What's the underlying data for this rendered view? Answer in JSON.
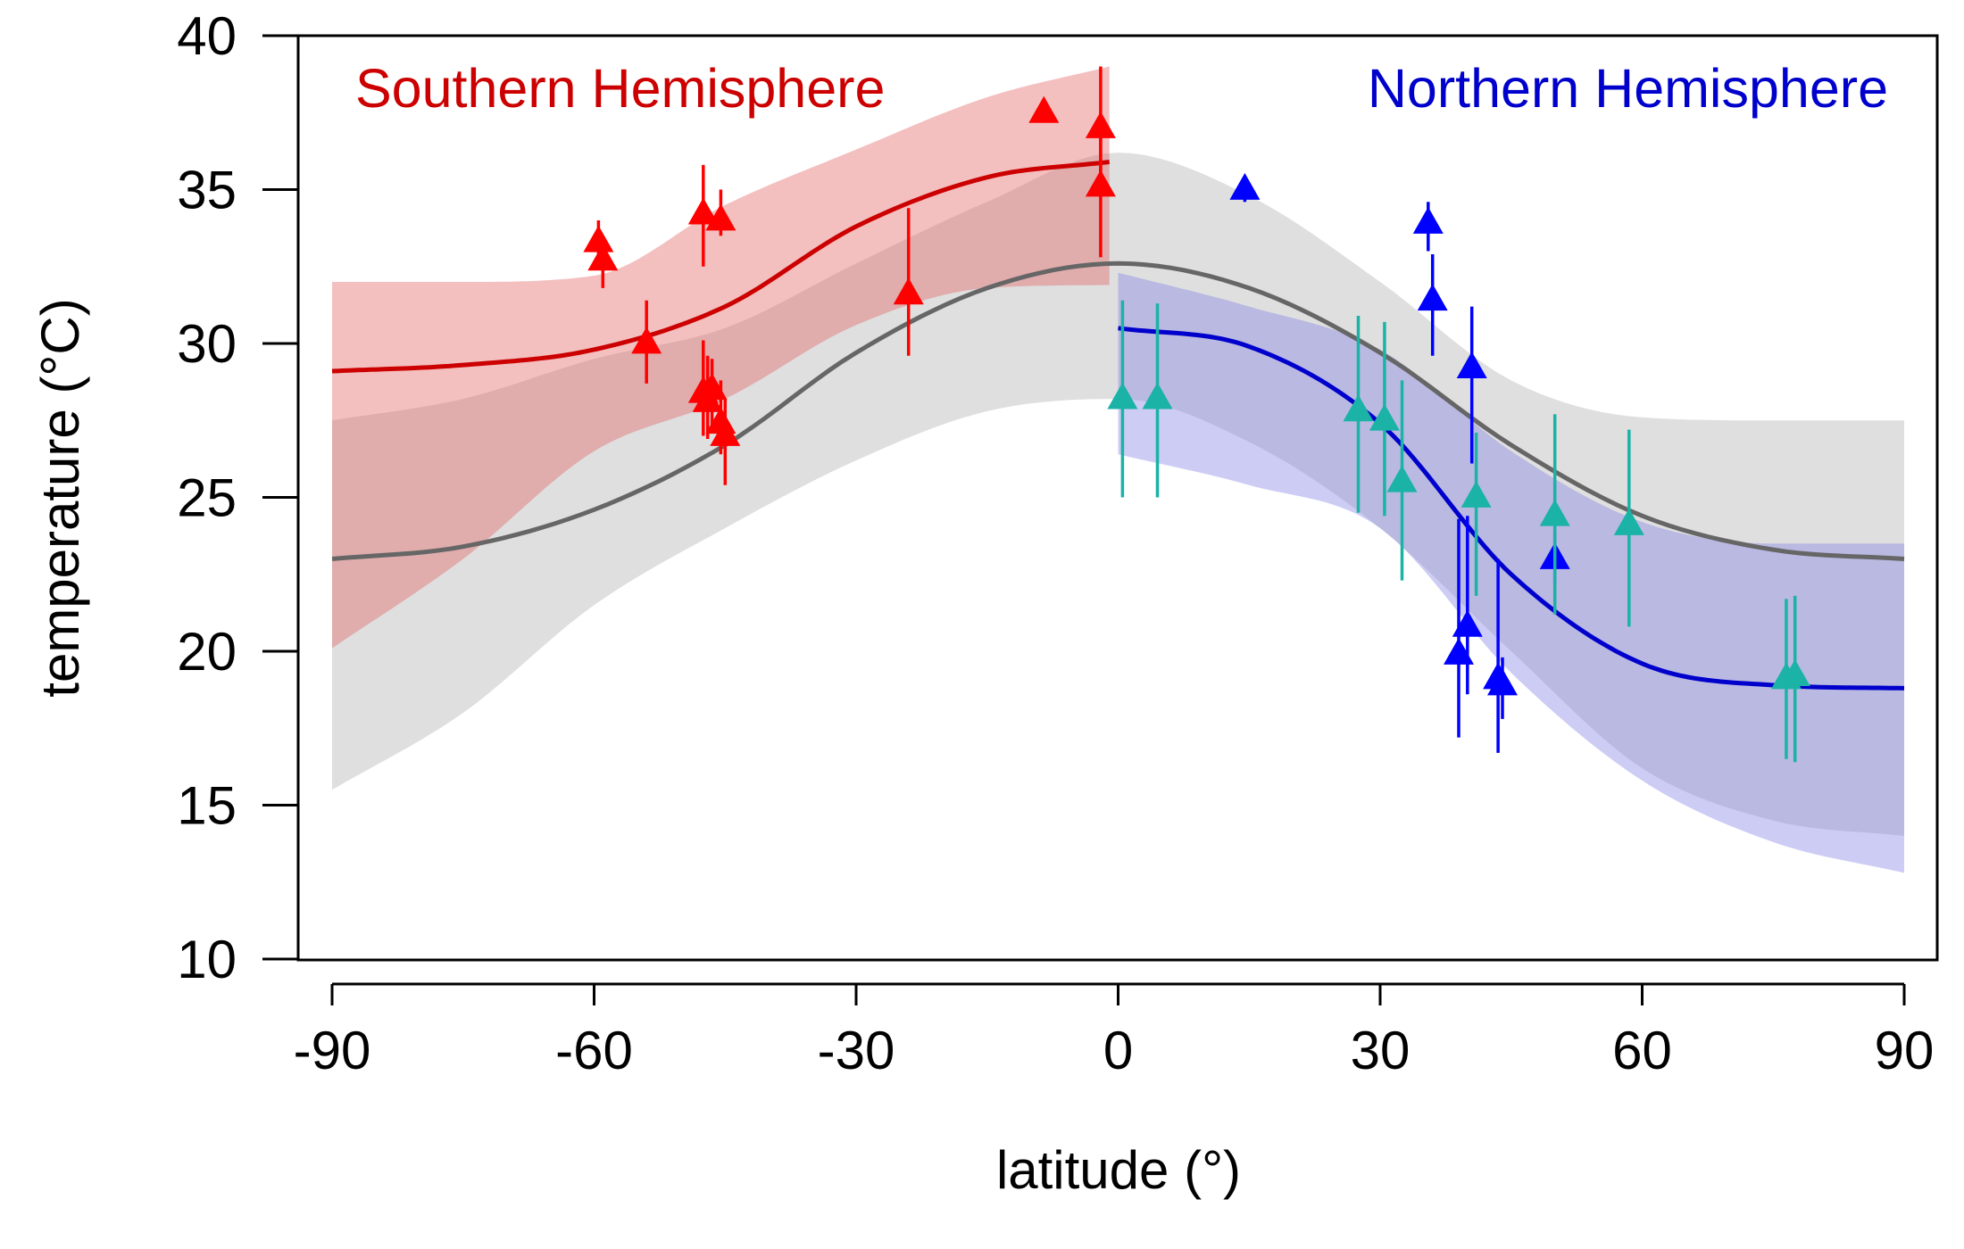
{
  "chart_data": {
    "type": "line",
    "xlabel": "latitude (°)",
    "ylabel": "temperature (°C)",
    "xlim": [
      -90,
      90
    ],
    "ylim": [
      10,
      40
    ],
    "xticks": [
      -90,
      -60,
      -30,
      0,
      30,
      60,
      90
    ],
    "yticks": [
      10,
      15,
      20,
      25,
      30,
      35,
      40
    ],
    "grid": false,
    "annotations": [
      {
        "text": "Southern Hemisphere",
        "color": "#cc0000",
        "position": "top-left"
      },
      {
        "text": "Northern Hemisphere",
        "color": "#0000cc",
        "position": "top-right"
      }
    ],
    "curves": [
      {
        "id": "global",
        "color": "#666666",
        "band_color": "#d9d9d9",
        "x": [
          -90,
          -75,
          -60,
          -45,
          -30,
          -15,
          0,
          15,
          30,
          45,
          60,
          75,
          90
        ],
        "y": [
          23.0,
          23.4,
          24.6,
          26.7,
          29.7,
          31.8,
          32.6,
          31.8,
          29.7,
          26.7,
          24.4,
          23.3,
          23.0
        ],
        "band_lower": [
          15.5,
          18.0,
          21.5,
          24.0,
          26.2,
          27.8,
          28.2,
          26.8,
          24.0,
          20.0,
          16.2,
          14.5,
          14.0
        ],
        "band_upper": [
          27.5,
          28.2,
          29.5,
          30.5,
          32.6,
          34.6,
          36.2,
          34.8,
          32.0,
          28.8,
          27.6,
          27.5,
          27.5
        ]
      },
      {
        "id": "southern",
        "color": "#cc0000",
        "band_color": "#e06060",
        "x": [
          -90,
          -75,
          -60,
          -45,
          -30,
          -15,
          -1
        ],
        "y": [
          29.1,
          29.3,
          29.8,
          31.2,
          33.8,
          35.4,
          35.9
        ],
        "band_lower": [
          20.1,
          23.0,
          26.5,
          28.2,
          30.6,
          31.8,
          31.9
        ],
        "band_upper": [
          32.0,
          32.0,
          32.2,
          34.5,
          36.3,
          38.0,
          39.0
        ]
      },
      {
        "id": "northern",
        "color": "#0000cc",
        "band_color": "#7f7fe6",
        "x": [
          0,
          15,
          30,
          45,
          60,
          75,
          90
        ],
        "y": [
          30.5,
          29.9,
          27.4,
          22.5,
          19.6,
          18.9,
          18.8
        ],
        "band_lower": [
          26.4,
          25.4,
          24.0,
          19.3,
          15.8,
          13.8,
          12.8
        ],
        "band_upper": [
          32.3,
          31.2,
          29.8,
          26.5,
          24.2,
          23.5,
          23.5
        ]
      }
    ],
    "points": [
      {
        "series": "southern",
        "color": "#ff0000",
        "data": [
          {
            "x": -59.5,
            "y": 33.3,
            "lo": 32.5,
            "hi": 34.0
          },
          {
            "x": -59.0,
            "y": 32.7,
            "lo": 31.8,
            "hi": 33.3
          },
          {
            "x": -54.0,
            "y": 30.0,
            "lo": 28.7,
            "hi": 31.4
          },
          {
            "x": -47.5,
            "y": 34.2,
            "lo": 32.5,
            "hi": 35.8
          },
          {
            "x": -45.5,
            "y": 34.0,
            "lo": 33.5,
            "hi": 35.0
          },
          {
            "x": -47.5,
            "y": 28.4,
            "lo": 27.0,
            "hi": 30.1
          },
          {
            "x": -47.0,
            "y": 28.1,
            "lo": 26.9,
            "hi": 29.6
          },
          {
            "x": -46.5,
            "y": 28.5,
            "lo": 27.3,
            "hi": 29.5
          },
          {
            "x": -45.5,
            "y": 27.4,
            "lo": 26.4,
            "hi": 28.8
          },
          {
            "x": -45.0,
            "y": 27.0,
            "lo": 25.4,
            "hi": 28.2
          },
          {
            "x": -24.0,
            "y": 31.6,
            "lo": 29.6,
            "hi": 34.4
          },
          {
            "x": -8.5,
            "y": 37.5,
            "lo": 37.3,
            "hi": 37.8
          },
          {
            "x": -2.0,
            "y": 37.0,
            "lo": 35.2,
            "hi": 39.0
          },
          {
            "x": -2.0,
            "y": 35.1,
            "lo": 32.8,
            "hi": 36.8
          }
        ]
      },
      {
        "series": "northern-blue",
        "color": "#0000ff",
        "data": [
          {
            "x": 14.5,
            "y": 35.0,
            "lo": 34.6,
            "hi": 35.4
          },
          {
            "x": 35.5,
            "y": 33.9,
            "lo": 33.0,
            "hi": 34.6
          },
          {
            "x": 36.0,
            "y": 31.4,
            "lo": 29.6,
            "hi": 32.9
          },
          {
            "x": 40.5,
            "y": 29.2,
            "lo": 26.1,
            "hi": 31.2
          },
          {
            "x": 39.0,
            "y": 19.9,
            "lo": 17.2,
            "hi": 24.3
          },
          {
            "x": 40.0,
            "y": 20.8,
            "lo": 18.6,
            "hi": 24.4
          },
          {
            "x": 43.5,
            "y": 19.1,
            "lo": 16.7,
            "hi": 23.0
          },
          {
            "x": 44.0,
            "y": 18.9,
            "lo": 17.8,
            "hi": 19.8
          },
          {
            "x": 50.0,
            "y": 23.0,
            "lo": 22.2,
            "hi": 23.9
          }
        ]
      },
      {
        "series": "northern-teal",
        "color": "#1ab3a6",
        "data": [
          {
            "x": 0.5,
            "y": 28.2,
            "lo": 25.0,
            "hi": 31.4
          },
          {
            "x": 4.5,
            "y": 28.2,
            "lo": 25.0,
            "hi": 31.3
          },
          {
            "x": 27.5,
            "y": 27.8,
            "lo": 24.5,
            "hi": 30.9
          },
          {
            "x": 30.5,
            "y": 27.5,
            "lo": 24.4,
            "hi": 30.7
          },
          {
            "x": 32.5,
            "y": 25.5,
            "lo": 22.3,
            "hi": 28.8
          },
          {
            "x": 41.0,
            "y": 25.0,
            "lo": 21.8,
            "hi": 27.1
          },
          {
            "x": 50.0,
            "y": 24.4,
            "lo": 21.2,
            "hi": 27.7
          },
          {
            "x": 58.5,
            "y": 24.1,
            "lo": 20.8,
            "hi": 27.2
          },
          {
            "x": 76.5,
            "y": 19.1,
            "lo": 16.5,
            "hi": 21.7
          },
          {
            "x": 77.5,
            "y": 19.2,
            "lo": 16.4,
            "hi": 21.8
          }
        ]
      }
    ]
  }
}
